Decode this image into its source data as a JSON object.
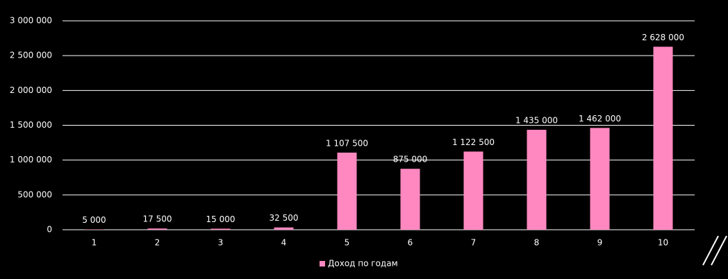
{
  "chart_data": {
    "type": "bar",
    "categories": [
      "1",
      "2",
      "3",
      "4",
      "5",
      "6",
      "7",
      "8",
      "9",
      "10"
    ],
    "series": [
      {
        "name": "Доход по годам",
        "color": "#ff88c0",
        "values": [
          5000,
          17500,
          15000,
          32500,
          1107500,
          875000,
          1122500,
          1435000,
          1462000,
          2628000
        ],
        "value_labels": [
          "5 000",
          "17 500",
          "15 000",
          "32 500",
          "1 107 500",
          "875 000",
          "1 122 500",
          "1 435 000",
          "1 462 000",
          "2 628 000"
        ]
      }
    ],
    "ylim": [
      0,
      3000000
    ],
    "yticks": [
      0,
      {
        "value": 500000,
        "label": "500 000"
      },
      {
        "value": 1000000,
        "label": "1 000 000"
      },
      {
        "value": 1500000,
        "label": "1 500 000"
      },
      {
        "value": 2000000,
        "label": "2 000 000"
      },
      {
        "value": 2500000,
        "label": "2 500 000"
      },
      {
        "value": 3000000,
        "label": "3 000 000"
      }
    ],
    "grid": true,
    "legend": "bottom"
  }
}
